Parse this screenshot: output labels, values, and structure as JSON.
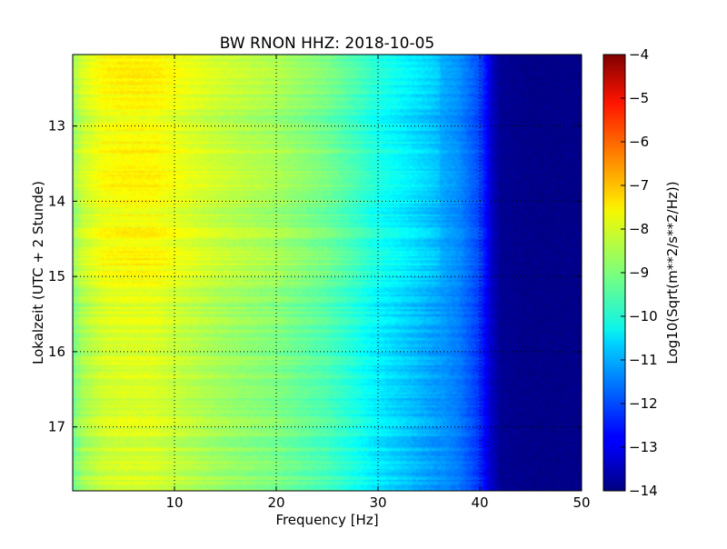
{
  "chart_data": {
    "type": "heatmap",
    "title": "BW RNON HHZ: 2018-10-05",
    "xlabel": "Frequency [Hz]",
    "ylabel": "Lokalzeit (UTC + 2 Stunde)",
    "xlim": [
      0,
      50
    ],
    "ylim": [
      17.85,
      12.05
    ],
    "x_ticks": [
      10,
      20,
      30,
      40,
      50
    ],
    "x_tick_labels": [
      "10",
      "20",
      "30",
      "40",
      "50"
    ],
    "y_ticks": [
      13,
      14,
      15,
      16,
      17
    ],
    "y_tick_labels": [
      "13",
      "14",
      "15",
      "16",
      "17"
    ],
    "grid": true,
    "colormap": "jet",
    "colorbar": {
      "label": "Log10(Sqrt(m**2/s**2/Hz))",
      "min": -14,
      "max": -4,
      "ticks": [
        -4,
        -5,
        -6,
        -7,
        -8,
        -9,
        -10,
        -11,
        -12,
        -13,
        -14
      ],
      "tick_labels": [
        "−4",
        "−5",
        "−6",
        "−7",
        "−8",
        "−9",
        "−10",
        "−11",
        "−12",
        "−13",
        "−14"
      ]
    },
    "frequency_profile": {
      "x": [
        0,
        1,
        3,
        5,
        8,
        10,
        15,
        20,
        25,
        28,
        30,
        33,
        35,
        38,
        40,
        41,
        42,
        45,
        50
      ],
      "values": [
        -9.0,
        -8.5,
        -8.1,
        -8.0,
        -8.0,
        -8.2,
        -8.6,
        -8.9,
        -9.4,
        -9.9,
        -10.3,
        -10.7,
        -11.0,
        -11.5,
        -12.2,
        -13.2,
        -13.8,
        -13.9,
        -13.9
      ]
    },
    "time_rows": {
      "y": [
        12.1,
        12.4,
        12.9,
        13.3,
        13.8,
        14.2,
        14.5,
        14.8,
        15.2,
        15.6,
        16.0,
        16.5,
        17.0,
        17.5,
        17.8
      ],
      "offsets": [
        0.35,
        0.4,
        0.1,
        0.35,
        0.3,
        0.15,
        0.3,
        0.35,
        0.05,
        -0.1,
        -0.15,
        -0.1,
        -0.1,
        -0.15,
        -0.15
      ]
    }
  }
}
